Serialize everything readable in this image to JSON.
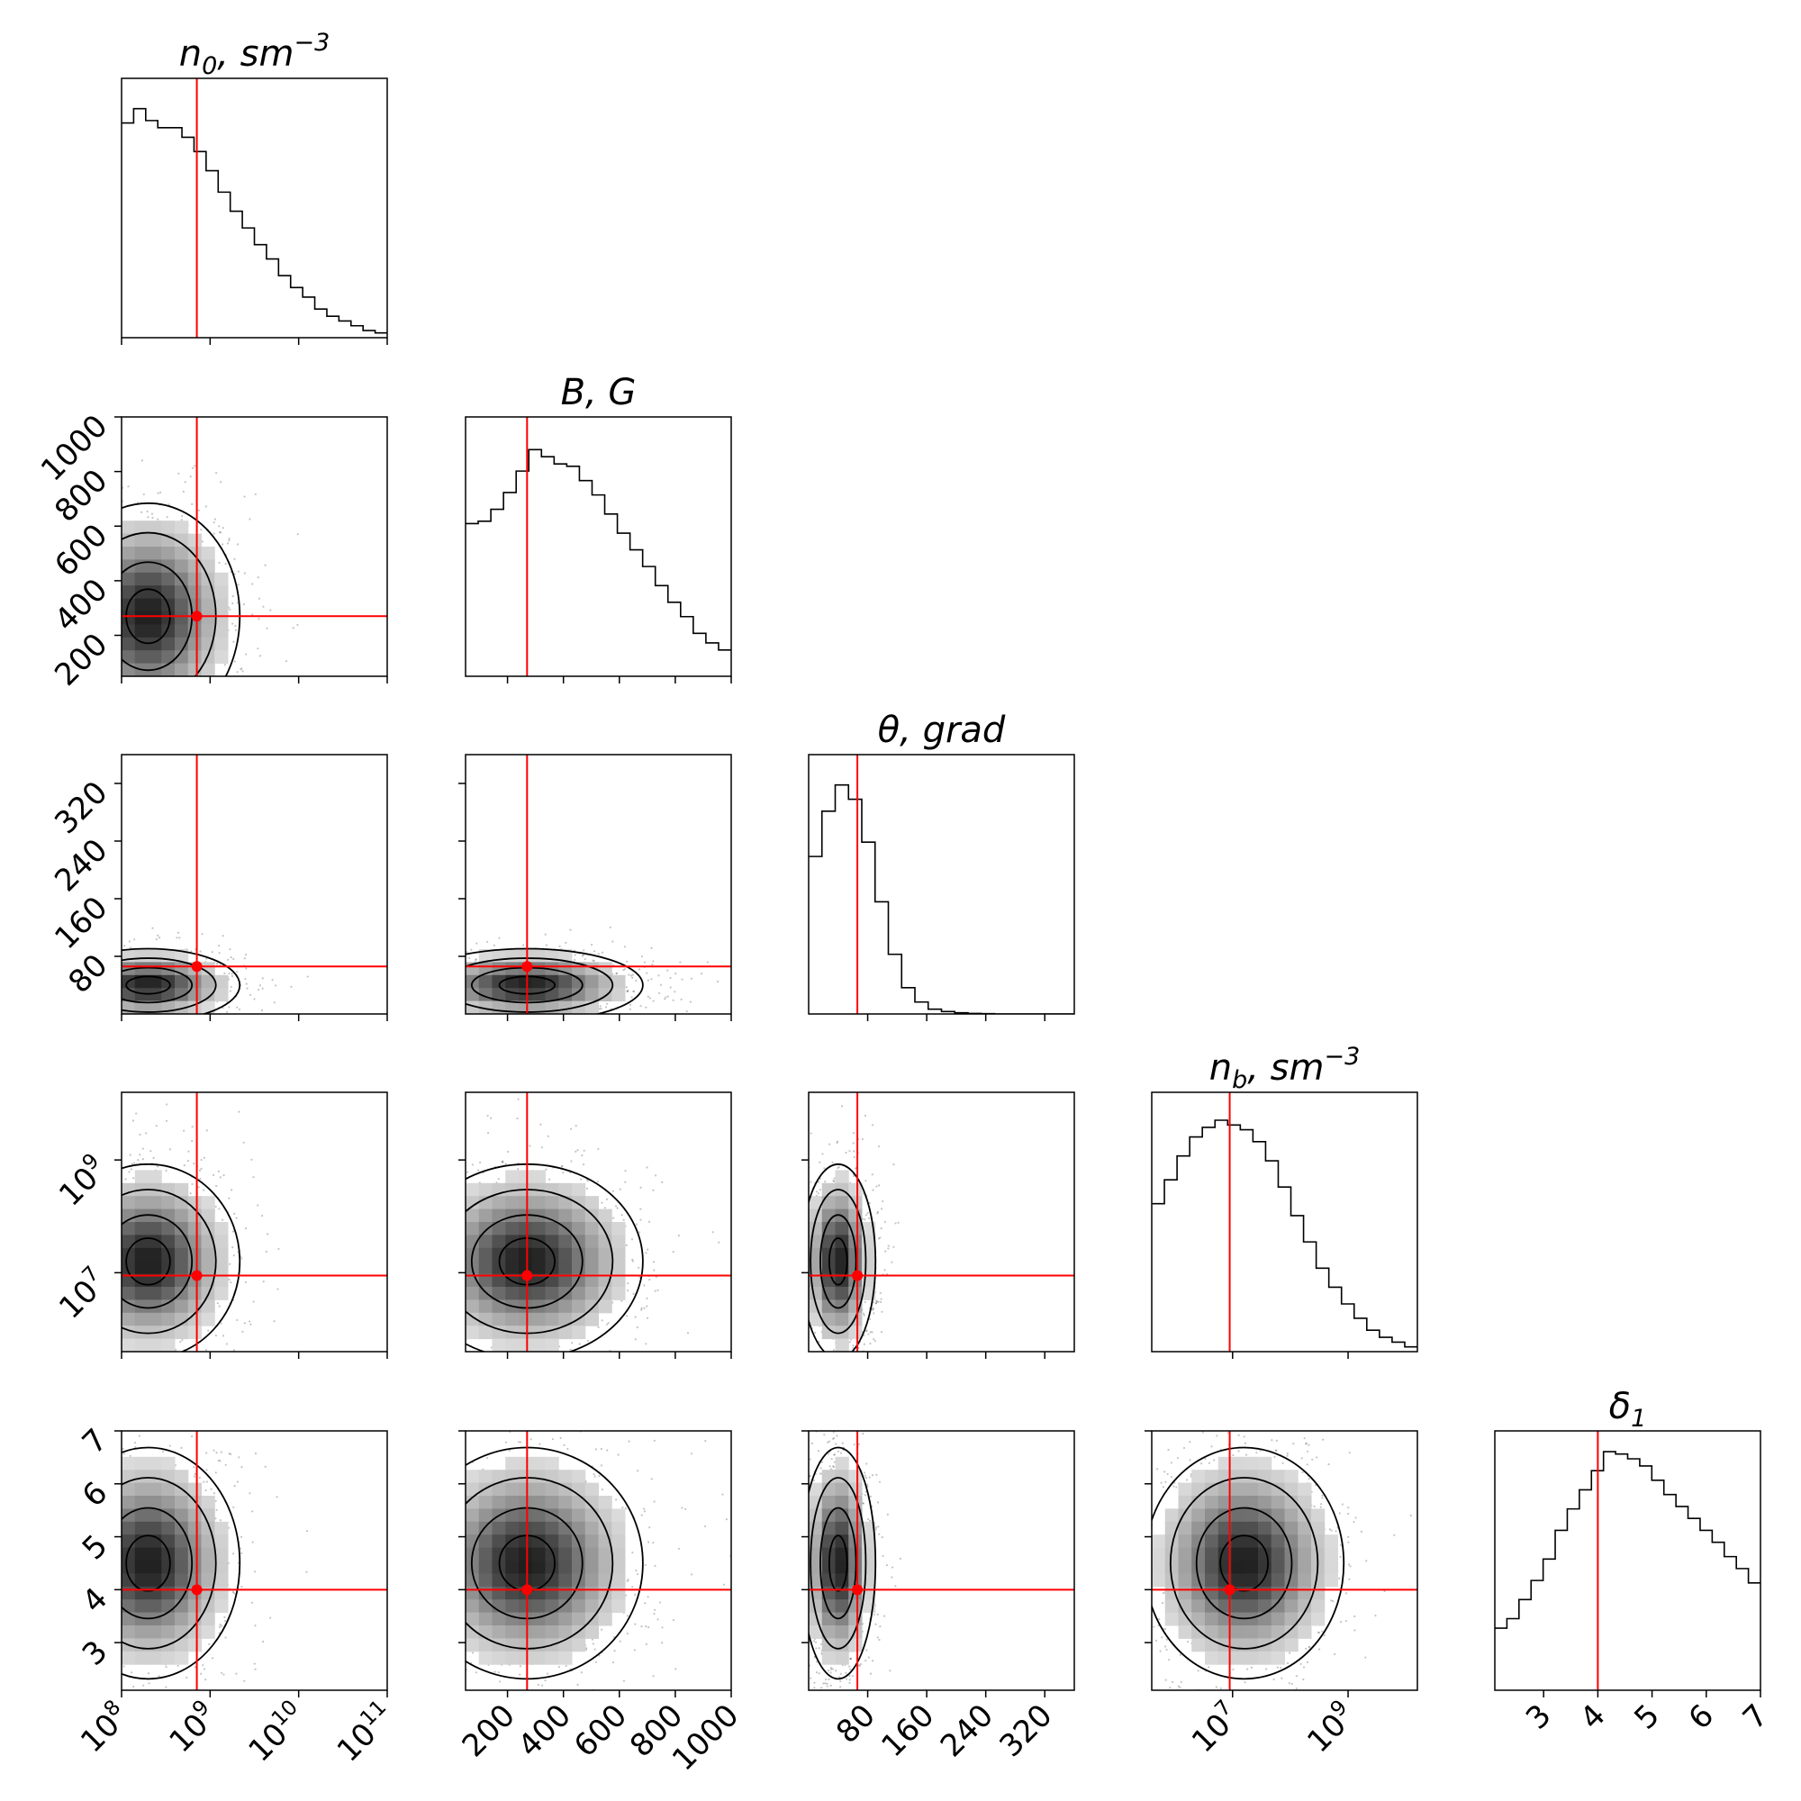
{
  "chart_data": {
    "type": "corner",
    "parameters": [
      {
        "key": "n0",
        "title": "n",
        "sub": "0",
        "unit": ", sm",
        "sup": "−3",
        "scale": "log",
        "range": [
          8,
          11
        ],
        "truth": 8.85,
        "ticks": [
          {
            "v": 8,
            "label": "10",
            "exp": "8"
          },
          {
            "v": 9,
            "label": "10",
            "exp": "9"
          },
          {
            "v": 10,
            "label": "10",
            "exp": "10"
          },
          {
            "v": 11,
            "label": "10",
            "exp": "11"
          }
        ],
        "hist": [
          0.9,
          0.96,
          0.91,
          0.88,
          0.88,
          0.84,
          0.78,
          0.7,
          0.61,
          0.53,
          0.46,
          0.39,
          0.33,
          0.26,
          0.21,
          0.17,
          0.12,
          0.09,
          0.07,
          0.05,
          0.03,
          0.02
        ]
      },
      {
        "key": "B",
        "title": "B, G",
        "sub": "",
        "unit": "",
        "sup": "",
        "scale": "linear",
        "range": [
          50,
          1000
        ],
        "truth": 270,
        "ticks": [
          {
            "v": 200,
            "label": "200"
          },
          {
            "v": 400,
            "label": "400"
          },
          {
            "v": 600,
            "label": "600"
          },
          {
            "v": 800,
            "label": "800"
          },
          {
            "v": 1000,
            "label": "1000"
          }
        ],
        "hist": [
          0.64,
          0.65,
          0.7,
          0.77,
          0.86,
          0.95,
          0.92,
          0.89,
          0.88,
          0.82,
          0.76,
          0.68,
          0.6,
          0.53,
          0.46,
          0.38,
          0.31,
          0.25,
          0.18,
          0.14,
          0.11
        ]
      },
      {
        "key": "theta",
        "title": "θ, grad",
        "sub": "",
        "unit": "",
        "sup": "",
        "scale": "linear",
        "range": [
          0,
          360
        ],
        "truth": 66,
        "ticks": [
          {
            "v": 80,
            "label": "80"
          },
          {
            "v": 160,
            "label": "160"
          },
          {
            "v": 240,
            "label": "240"
          },
          {
            "v": 320,
            "label": "320"
          }
        ],
        "hist": [
          0.66,
          0.85,
          0.96,
          0.9,
          0.72,
          0.47,
          0.25,
          0.11,
          0.05,
          0.02,
          0.01,
          0.005,
          0.002,
          0.001,
          0.0,
          0.0,
          0.0,
          0.0,
          0.0,
          0.0
        ]
      },
      {
        "key": "nb",
        "title": "n",
        "sub": "b",
        "unit": ", sm",
        "sup": "−3",
        "scale": "log",
        "range": [
          5.6,
          10.2
        ],
        "truth": 6.95,
        "ticks": [
          {
            "v": 7,
            "label": "10",
            "exp": "7"
          },
          {
            "v": 9,
            "label": "10",
            "exp": "9"
          }
        ],
        "hist": [
          0.62,
          0.72,
          0.82,
          0.9,
          0.94,
          0.97,
          0.95,
          0.93,
          0.88,
          0.8,
          0.69,
          0.57,
          0.46,
          0.35,
          0.27,
          0.2,
          0.14,
          0.09,
          0.06,
          0.04,
          0.02
        ]
      },
      {
        "key": "delta1",
        "title": "δ",
        "sub": "1",
        "unit": "",
        "sup": "",
        "scale": "linear",
        "range": [
          2.1,
          7
        ],
        "truth": 4,
        "ticks": [
          {
            "v": 3,
            "label": "3"
          },
          {
            "v": 4,
            "label": "4"
          },
          {
            "v": 5,
            "label": "5"
          },
          {
            "v": 6,
            "label": "6"
          },
          {
            "v": 7,
            "label": "7"
          }
        ],
        "hist": [
          0.26,
          0.3,
          0.38,
          0.46,
          0.55,
          0.67,
          0.76,
          0.84,
          0.92,
          1.0,
          0.99,
          0.97,
          0.94,
          0.88,
          0.82,
          0.77,
          0.72,
          0.67,
          0.62,
          0.56,
          0.51,
          0.45
        ]
      }
    ],
    "peaks": [
      8.3,
      270,
      40,
      7.2,
      4.5
    ],
    "spreads": [
      0.45,
      180,
      22,
      0.75,
      0.95
    ],
    "truth_color": "#ff0000",
    "hist_color": "#000000",
    "scatter_color": "#555555",
    "grid": false,
    "legend": "none"
  }
}
